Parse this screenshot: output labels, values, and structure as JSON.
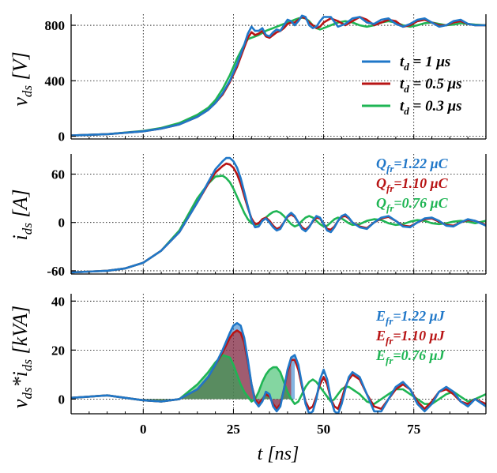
{
  "chart_data": [
    {
      "type": "line",
      "panel": "voltage",
      "ylabel": "v_ds [V]",
      "xlabel": "",
      "xlim": [
        -20,
        95
      ],
      "ylim": [
        -20,
        880
      ],
      "yticks": [
        0,
        400,
        800
      ],
      "xticks": [
        0,
        25,
        50,
        75
      ],
      "xtick_labels": [
        "",
        "",
        "",
        ""
      ],
      "grid": true,
      "legend_position": "right",
      "legend": [
        {
          "sub": "d",
          "text": " = 1 μs"
        },
        {
          "sub": "d",
          "text": " = 0.5 μs"
        },
        {
          "sub": "d",
          "text": " = 0.3 μs"
        }
      ],
      "x": [
        -20,
        -10,
        0,
        5,
        10,
        15,
        18,
        20,
        22,
        24,
        26,
        28,
        29,
        30,
        31,
        32,
        33,
        34,
        35,
        36,
        37,
        38,
        39,
        40,
        41,
        42,
        43,
        44,
        45,
        46,
        47,
        48,
        49,
        50,
        52,
        54,
        56,
        58,
        60,
        62,
        64,
        66,
        68,
        70,
        72,
        74,
        76,
        78,
        80,
        82,
        84,
        86,
        88,
        90,
        92,
        95
      ],
      "series": [
        {
          "name": "t_d = 1 μs",
          "color": "#1f77c8",
          "values": [
            5,
            15,
            35,
            55,
            85,
            140,
            190,
            240,
            310,
            400,
            520,
            660,
            740,
            790,
            760,
            760,
            780,
            730,
            720,
            750,
            770,
            760,
            800,
            840,
            830,
            800,
            830,
            870,
            860,
            800,
            780,
            790,
            830,
            860,
            860,
            790,
            810,
            850,
            860,
            820,
            810,
            840,
            850,
            810,
            790,
            810,
            840,
            850,
            820,
            790,
            800,
            830,
            840,
            810,
            800,
            800
          ]
        },
        {
          "name": "t_d = 0.5 μs",
          "color": "#b81414",
          "values": [
            5,
            15,
            35,
            55,
            85,
            140,
            190,
            240,
            300,
            390,
            500,
            640,
            710,
            750,
            730,
            740,
            760,
            720,
            710,
            730,
            750,
            760,
            780,
            810,
            820,
            820,
            840,
            860,
            850,
            820,
            800,
            780,
            790,
            820,
            850,
            830,
            800,
            830,
            860,
            840,
            800,
            820,
            840,
            830,
            790,
            800,
            830,
            840,
            820,
            800,
            800,
            820,
            830,
            810,
            800,
            800
          ]
        },
        {
          "name": "t_d = 0.3 μs",
          "color": "#1fb554",
          "values": [
            5,
            15,
            38,
            60,
            95,
            155,
            205,
            260,
            340,
            440,
            560,
            660,
            700,
            710,
            720,
            730,
            745,
            760,
            770,
            780,
            790,
            800,
            810,
            820,
            830,
            840,
            850,
            855,
            850,
            830,
            800,
            780,
            770,
            780,
            800,
            820,
            830,
            820,
            800,
            790,
            800,
            820,
            830,
            820,
            800,
            790,
            800,
            815,
            820,
            810,
            800,
            805,
            815,
            810,
            805,
            800
          ]
        }
      ]
    },
    {
      "type": "line",
      "panel": "current",
      "ylabel": "i_ds [A]",
      "xlim": [
        -20,
        95
      ],
      "ylim": [
        -64,
        85
      ],
      "yticks": [
        -60,
        0,
        60
      ],
      "xticks": [
        0,
        25,
        50,
        75
      ],
      "grid": true,
      "annotations": [
        {
          "prefix": "Q",
          "sub": "fr",
          "text": "=1.22 μC",
          "color": "#1f77c8"
        },
        {
          "prefix": "Q",
          "sub": "fr",
          "text": "=1.10 μC",
          "color": "#b81414"
        },
        {
          "prefix": "Q",
          "sub": "fr",
          "text": "=0.76 μC",
          "color": "#1fb554"
        }
      ],
      "x": [
        -20,
        -10,
        -5,
        0,
        5,
        10,
        15,
        18,
        20,
        22,
        23,
        24,
        25,
        26,
        27,
        28,
        29,
        30,
        31,
        32,
        33,
        34,
        35,
        36,
        37,
        38,
        39,
        40,
        41,
        42,
        43,
        44,
        45,
        46,
        47,
        48,
        49,
        50,
        51,
        52,
        53,
        54,
        55,
        56,
        57,
        58,
        60,
        62,
        64,
        66,
        68,
        70,
        72,
        74,
        76,
        78,
        80,
        82,
        84,
        86,
        88,
        90,
        92,
        95
      ],
      "series": [
        {
          "name": "Q_fr=1.22 μC",
          "color": "#1f77c8",
          "values": [
            -62,
            -60,
            -57,
            -50,
            -35,
            -12,
            25,
            50,
            66,
            76,
            80,
            80,
            76,
            68,
            55,
            38,
            20,
            3,
            -6,
            -5,
            2,
            5,
            0,
            -6,
            -10,
            -8,
            0,
            8,
            12,
            8,
            0,
            -8,
            -11,
            -6,
            2,
            8,
            6,
            -2,
            -10,
            -12,
            -6,
            2,
            8,
            10,
            6,
            0,
            -6,
            -8,
            0,
            6,
            8,
            2,
            -5,
            -6,
            0,
            5,
            6,
            2,
            -4,
            -5,
            0,
            4,
            2,
            -4
          ]
        },
        {
          "name": "Q_fr=1.10 μC",
          "color": "#b81414",
          "values": [
            -62,
            -60,
            -57,
            -50,
            -35,
            -12,
            25,
            48,
            62,
            70,
            73,
            72,
            68,
            60,
            48,
            33,
            18,
            5,
            -2,
            -1,
            4,
            6,
            2,
            -4,
            -8,
            -6,
            0,
            7,
            10,
            7,
            0,
            -6,
            -9,
            -5,
            1,
            6,
            5,
            -2,
            -8,
            -9,
            -5,
            2,
            7,
            8,
            5,
            0,
            -5,
            -7,
            0,
            5,
            7,
            2,
            -4,
            -5,
            0,
            4,
            5,
            1,
            -3,
            -4,
            0,
            3,
            2,
            -3
          ]
        },
        {
          "name": "Q_fr=0.76 μC",
          "color": "#1fb554",
          "values": [
            -62,
            -60,
            -57,
            -50,
            -35,
            -10,
            30,
            48,
            57,
            58,
            55,
            50,
            42,
            32,
            22,
            12,
            4,
            -1,
            -3,
            -2,
            2,
            6,
            10,
            13,
            14,
            12,
            8,
            3,
            -2,
            -5,
            -3,
            2,
            6,
            8,
            6,
            2,
            -2,
            -5,
            -4,
            0,
            4,
            6,
            5,
            2,
            -1,
            -3,
            -2,
            2,
            4,
            3,
            -1,
            -3,
            -2,
            1,
            3,
            2,
            -1,
            -2,
            -1,
            1,
            2,
            1,
            -1,
            2
          ]
        }
      ]
    },
    {
      "type": "area",
      "panel": "power",
      "ylabel": "v_ds*i_ds [kVA]",
      "xlabel": "t [ns]",
      "xlim": [
        -20,
        95
      ],
      "ylim": [
        -6,
        43
      ],
      "yticks": [
        0,
        20,
        40
      ],
      "xticks": [
        0,
        25,
        50,
        75
      ],
      "xtick_labels": [
        "0",
        "25",
        "50",
        "75"
      ],
      "grid": true,
      "annotations": [
        {
          "prefix": "E",
          "sub": "fr",
          "text": "=1.22 μJ",
          "color": "#1f77c8"
        },
        {
          "prefix": "E",
          "sub": "fr",
          "text": "=1.10 μJ",
          "color": "#b81414"
        },
        {
          "prefix": "E",
          "sub": "fr",
          "text": "=0.76 μJ",
          "color": "#1fb554"
        }
      ],
      "x": [
        -20,
        -15,
        -10,
        -5,
        0,
        5,
        10,
        15,
        18,
        20,
        22,
        24,
        25,
        26,
        27,
        28,
        29,
        30,
        31,
        32,
        33,
        34,
        35,
        36,
        37,
        38,
        39,
        40,
        41,
        42,
        43,
        44,
        45,
        46,
        47,
        48,
        49,
        50,
        51,
        52,
        53,
        54,
        55,
        56,
        57,
        58,
        60,
        62,
        64,
        66,
        68,
        70,
        72,
        74,
        76,
        78,
        80,
        82,
        84,
        86,
        88,
        90,
        92,
        95
      ],
      "fill_until": [
        42,
        41,
        41
      ],
      "series": [
        {
          "name": "E_fr=1.22 μJ",
          "color": "#1f77c8",
          "values": [
            0.5,
            1,
            1.5,
            0.5,
            -0.5,
            -1,
            0,
            4,
            9,
            14,
            20,
            27,
            30,
            31,
            30,
            25,
            16,
            6,
            -1,
            -3,
            -1,
            3,
            2,
            -3,
            -5,
            -3,
            4,
            12,
            17,
            18,
            14,
            6,
            -2,
            -6,
            -5,
            0,
            8,
            12,
            8,
            0,
            -5,
            -6,
            -2,
            4,
            9,
            11,
            9,
            2,
            -5,
            -5,
            0,
            5,
            7,
            4,
            -2,
            -5,
            -2,
            3,
            5,
            3,
            -1,
            -3,
            0,
            -3
          ]
        },
        {
          "name": "E_fr=1.10 μJ",
          "color": "#b81414",
          "values": [
            0.5,
            1,
            1.5,
            0.5,
            -0.5,
            -1,
            0,
            4,
            9,
            14,
            19,
            25,
            27,
            28,
            27,
            23,
            15,
            6,
            0,
            -2,
            0,
            2,
            1,
            -2,
            -4,
            -2,
            4,
            11,
            16,
            16,
            12,
            5,
            -1,
            -4,
            -3,
            1,
            6,
            9,
            6,
            0,
            -3,
            -4,
            0,
            5,
            8,
            10,
            8,
            2,
            -3,
            -4,
            0,
            4,
            6,
            4,
            -1,
            -4,
            -1,
            3,
            4,
            2,
            -1,
            -2,
            0,
            -2
          ]
        },
        {
          "name": "E_fr=0.76 μJ",
          "color": "#1fb554",
          "values": [
            0.5,
            1,
            1.5,
            0.5,
            -0.5,
            -1,
            0,
            6,
            11,
            15,
            18,
            17,
            14,
            10,
            6,
            3,
            1,
            -1,
            0,
            3,
            7,
            10,
            12,
            13,
            13,
            11,
            7,
            3,
            0,
            -2,
            -1,
            2,
            5,
            7,
            8,
            7,
            5,
            3,
            1,
            -1,
            0,
            2,
            4,
            5,
            5,
            4,
            2,
            -1,
            -2,
            0,
            2,
            4,
            4,
            2,
            0,
            -2,
            -2,
            0,
            2,
            3,
            1,
            -1,
            0,
            2
          ]
        }
      ]
    }
  ]
}
